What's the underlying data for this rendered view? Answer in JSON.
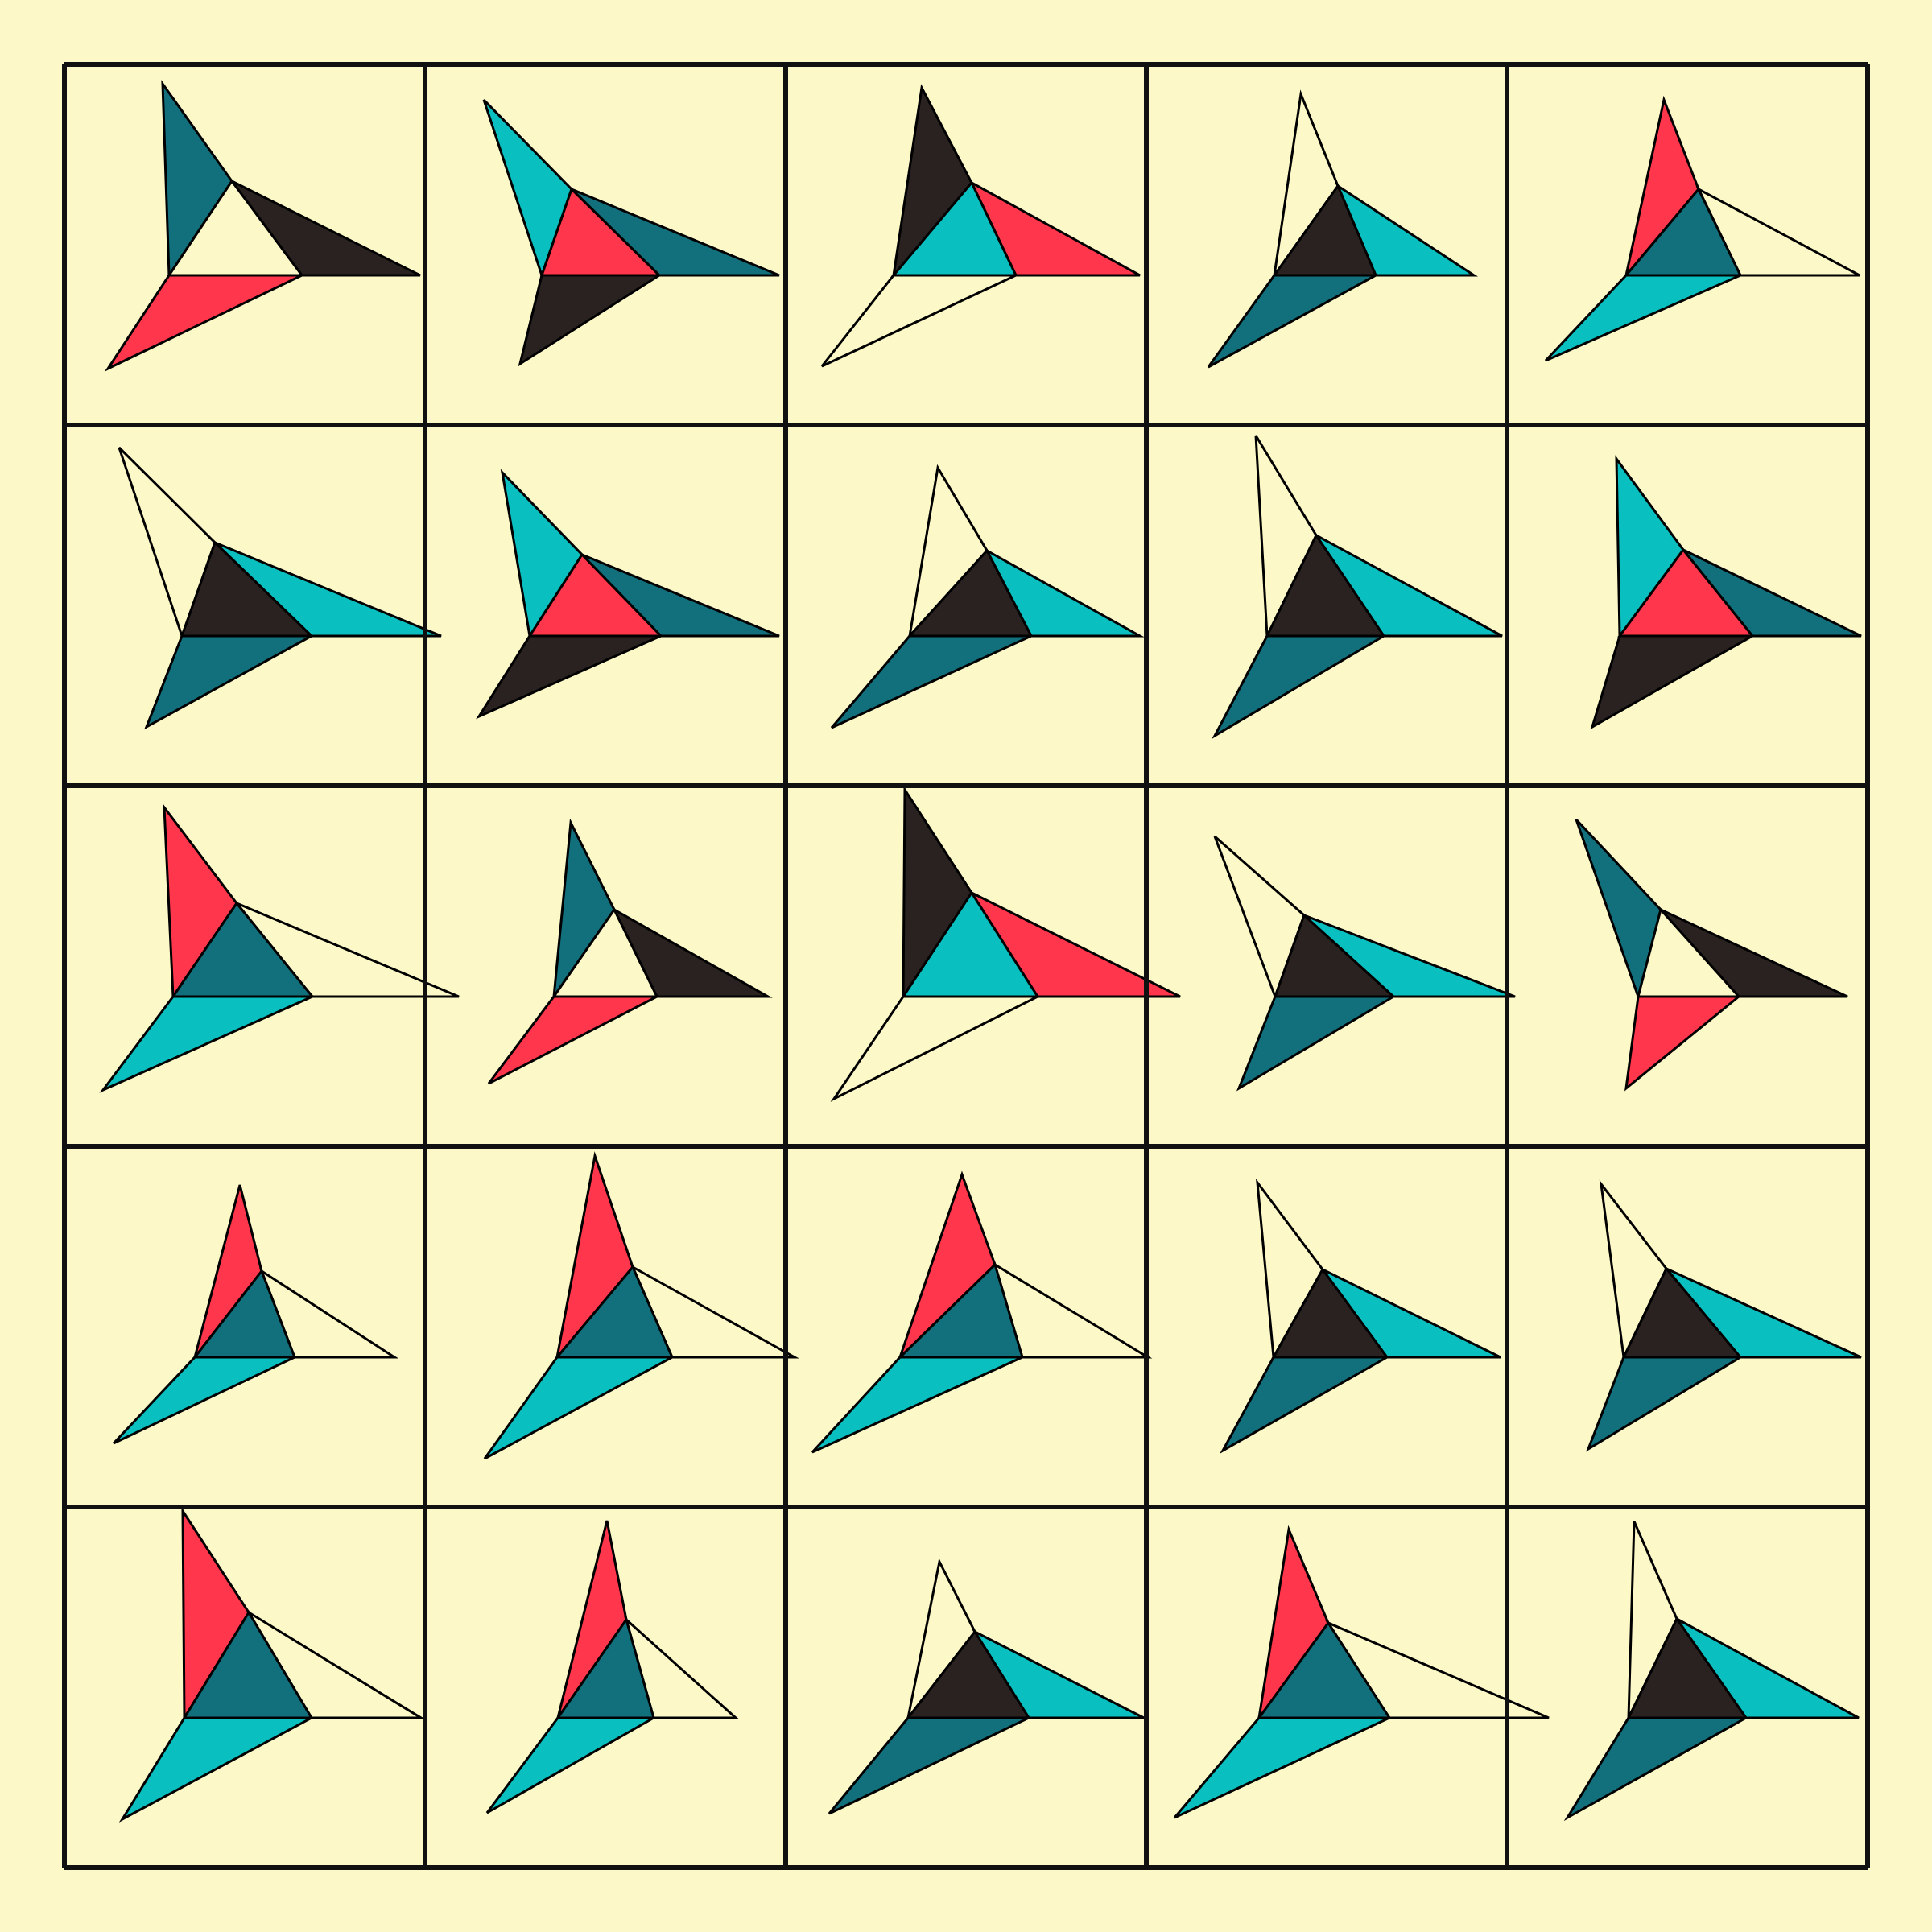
{
  "palette": {
    "background": "#FDF8C8",
    "red": "#FF364C",
    "cyan": "#0ABFBF",
    "teal": "#12707C",
    "dark": "#2A2220",
    "white": "#FDF8C8",
    "grid": "#111111"
  },
  "grid": {
    "rows": 5,
    "cols": 5
  },
  "cells": [
    {
      "colors": [
        "teal",
        "dark",
        "white",
        "red"
      ]
    },
    {
      "colors": [
        "cyan",
        "teal",
        "red",
        "dark"
      ]
    },
    {
      "colors": [
        "dark",
        "red",
        "cyan",
        "white"
      ]
    },
    {
      "colors": [
        "white",
        "cyan",
        "dark",
        "teal"
      ]
    },
    {
      "colors": [
        "red",
        "white",
        "teal",
        "cyan"
      ]
    },
    {
      "colors": [
        "white",
        "cyan",
        "dark",
        "teal"
      ]
    },
    {
      "colors": [
        "cyan",
        "teal",
        "red",
        "dark"
      ]
    },
    {
      "colors": [
        "white",
        "cyan",
        "dark",
        "teal"
      ]
    },
    {
      "colors": [
        "white",
        "cyan",
        "dark",
        "teal"
      ]
    },
    {
      "colors": [
        "cyan",
        "teal",
        "red",
        "dark"
      ]
    },
    {
      "colors": [
        "red",
        "white",
        "teal",
        "cyan"
      ]
    },
    {
      "colors": [
        "teal",
        "dark",
        "white",
        "red"
      ]
    },
    {
      "colors": [
        "dark",
        "red",
        "cyan",
        "white"
      ]
    },
    {
      "colors": [
        "white",
        "cyan",
        "dark",
        "teal"
      ]
    },
    {
      "colors": [
        "teal",
        "dark",
        "white",
        "red"
      ]
    },
    {
      "colors": [
        "red",
        "white",
        "teal",
        "cyan"
      ]
    },
    {
      "colors": [
        "red",
        "white",
        "teal",
        "cyan"
      ]
    },
    {
      "colors": [
        "red",
        "white",
        "teal",
        "cyan"
      ]
    },
    {
      "colors": [
        "white",
        "cyan",
        "dark",
        "teal"
      ]
    },
    {
      "colors": [
        "white",
        "cyan",
        "dark",
        "teal"
      ]
    },
    {
      "colors": [
        "red",
        "white",
        "teal",
        "cyan"
      ]
    },
    {
      "colors": [
        "red",
        "white",
        "teal",
        "cyan"
      ]
    },
    {
      "colors": [
        "white",
        "cyan",
        "dark",
        "teal"
      ]
    },
    {
      "colors": [
        "red",
        "white",
        "teal",
        "cyan"
      ]
    },
    {
      "colors": [
        "white",
        "cyan",
        "dark",
        "teal"
      ]
    }
  ]
}
